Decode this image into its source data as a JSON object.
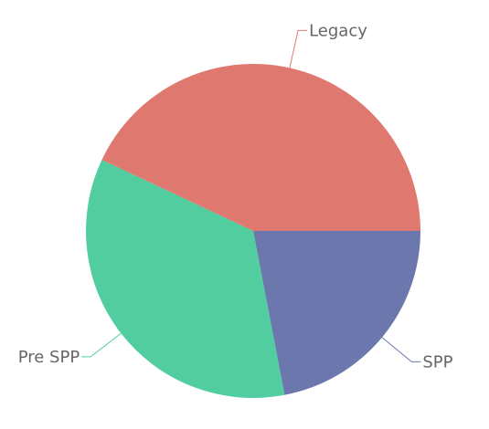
{
  "chart_data": {
    "type": "pie",
    "title": "",
    "slices": [
      {
        "label": "SPP",
        "value": 22,
        "color": "#6c78ad"
      },
      {
        "label": "Pre SPP",
        "value": 35,
        "color": "#51cda0"
      },
      {
        "label": "Legacy",
        "value": 43,
        "color": "#df7970"
      }
    ],
    "start_direction": "east",
    "rotation": "clockwise",
    "legend": "none",
    "labels": "outside-with-leader-lines"
  }
}
